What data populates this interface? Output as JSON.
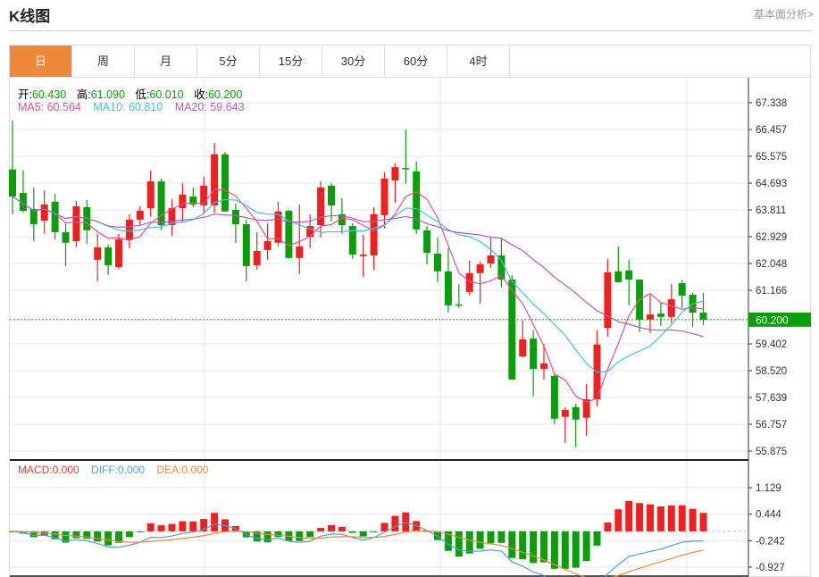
{
  "header": {
    "title": "K线图",
    "link": "基本面分析>"
  },
  "tabs": [
    {
      "label": "日",
      "active": true
    },
    {
      "label": "周"
    },
    {
      "label": "月"
    },
    {
      "label": "5分"
    },
    {
      "label": "15分"
    },
    {
      "label": "30分"
    },
    {
      "label": "60分"
    },
    {
      "label": "4时"
    }
  ],
  "ohlc_info": {
    "open_label": "开:",
    "open": "60.430",
    "high_label": "高:",
    "high": "61.090",
    "low_label": "低:",
    "low": "60.010",
    "close_label": "收:",
    "close": "60.200"
  },
  "ma_info": {
    "ma5": "MA5: 60.564",
    "ma10": "MA10: 60.810",
    "ma20": "MA20: 59.643"
  },
  "macd_info": {
    "macd": "MACD:0.000",
    "diff": "DIFF:0.000",
    "dea": "DEA:0.000"
  },
  "colors": {
    "up": "#ee2020",
    "down": "#0a9e0a",
    "active_tab": "#f0883a",
    "ma5": "#e8508c",
    "ma10": "#3cc4d4",
    "ma20": "#b05cc0",
    "diff": "#4a9ee0",
    "dea": "#f08a30",
    "last_price": "#0a9e0a"
  },
  "chart_data": {
    "type": "candlestick",
    "price_axis": {
      "ticks": [
        "67.338",
        "66.457",
        "65.575",
        "64.693",
        "63.811",
        "62.929",
        "62.048",
        "61.166",
        "60.200",
        "59.402",
        "58.520",
        "57.639",
        "56.757",
        "55.875"
      ],
      "range": [
        55.875,
        67.338
      ],
      "last_price": "60.200"
    },
    "macd_axis": {
      "ticks": [
        "1.129",
        "0.444",
        "-0.242",
        "-0.927"
      ],
      "range": [
        -0.927,
        1.129
      ]
    },
    "candles": [
      [
        65.14,
        66.75,
        63.67,
        64.25
      ],
      [
        64.37,
        65.11,
        63.73,
        63.78
      ],
      [
        63.84,
        64.55,
        62.78,
        63.34
      ],
      [
        63.46,
        64.46,
        63.02,
        63.99
      ],
      [
        64.08,
        64.34,
        62.84,
        63.08
      ],
      [
        63.08,
        63.37,
        61.96,
        62.73
      ],
      [
        62.78,
        64.11,
        62.58,
        63.93
      ],
      [
        63.9,
        64.14,
        62.7,
        63.14
      ],
      [
        62.17,
        63.02,
        61.46,
        62.58
      ],
      [
        62.58,
        62.67,
        61.67,
        61.99
      ],
      [
        61.93,
        63.02,
        61.87,
        62.84
      ],
      [
        62.84,
        63.67,
        62.55,
        63.49
      ],
      [
        63.49,
        63.93,
        63.31,
        63.78
      ],
      [
        63.87,
        65.11,
        63.58,
        64.75
      ],
      [
        64.75,
        64.84,
        63.14,
        63.31
      ],
      [
        63.31,
        64.17,
        62.96,
        63.87
      ],
      [
        63.87,
        64.7,
        63.43,
        64.31
      ],
      [
        64.25,
        64.55,
        63.9,
        63.99
      ],
      [
        63.96,
        64.9,
        63.67,
        64.61
      ],
      [
        63.96,
        66.02,
        63.7,
        65.64
      ],
      [
        65.64,
        65.72,
        63.76,
        63.76
      ],
      [
        63.81,
        64.02,
        62.73,
        63.34
      ],
      [
        63.34,
        63.49,
        61.46,
        61.96
      ],
      [
        61.99,
        63.08,
        61.84,
        62.46
      ],
      [
        62.49,
        63.37,
        62.17,
        62.78
      ],
      [
        62.73,
        64.08,
        62.61,
        63.76
      ],
      [
        63.78,
        63.81,
        62.2,
        62.23
      ],
      [
        62.23,
        63.99,
        61.7,
        62.61
      ],
      [
        62.93,
        63.67,
        62.55,
        63.28
      ],
      [
        63.31,
        64.75,
        62.9,
        64.55
      ],
      [
        64.61,
        64.7,
        63.43,
        63.96
      ],
      [
        63.67,
        64.2,
        63.02,
        63.31
      ],
      [
        63.28,
        63.37,
        62.2,
        62.34
      ],
      [
        62.29,
        62.99,
        61.61,
        62.34
      ],
      [
        62.31,
        63.9,
        61.84,
        63.67
      ],
      [
        63.64,
        65.05,
        63.2,
        64.84
      ],
      [
        64.78,
        65.34,
        64.05,
        65.22
      ],
      [
        65.19,
        66.46,
        64.67,
        65.17
      ],
      [
        65.08,
        65.4,
        63.02,
        63.17
      ],
      [
        63.14,
        63.28,
        62.02,
        62.4
      ],
      [
        62.37,
        62.9,
        61.43,
        61.79
      ],
      [
        61.79,
        62.55,
        60.43,
        60.67
      ],
      [
        60.7,
        61.37,
        60.58,
        60.67
      ],
      [
        61.11,
        62.14,
        60.99,
        61.73
      ],
      [
        61.73,
        62.11,
        60.73,
        62.02
      ],
      [
        62.05,
        62.93,
        61.9,
        62.31
      ],
      [
        62.31,
        62.87,
        61.26,
        61.52
      ],
      [
        61.52,
        61.67,
        58.23,
        58.23
      ],
      [
        58.99,
        60.17,
        58.96,
        59.55
      ],
      [
        59.58,
        59.85,
        57.67,
        58.58
      ],
      [
        58.58,
        59.4,
        58.23,
        58.76
      ],
      [
        58.35,
        58.41,
        56.76,
        56.94
      ],
      [
        57.0,
        57.32,
        56.14,
        57.23
      ],
      [
        57.32,
        57.44,
        56.0,
        56.91
      ],
      [
        56.97,
        58.08,
        56.38,
        57.58
      ],
      [
        57.58,
        59.85,
        57.35,
        59.38
      ],
      [
        59.93,
        62.2,
        59.64,
        61.76
      ],
      [
        61.79,
        62.61,
        61.43,
        61.43
      ],
      [
        61.82,
        62.17,
        60.67,
        61.52
      ],
      [
        61.52,
        61.52,
        59.79,
        60.2
      ],
      [
        60.2,
        61.02,
        59.76,
        60.37
      ],
      [
        60.4,
        60.76,
        59.99,
        60.29
      ],
      [
        60.29,
        61.37,
        60.08,
        60.87
      ],
      [
        61.4,
        61.49,
        60.58,
        60.99
      ],
      [
        61.02,
        61.08,
        59.96,
        60.43
      ],
      [
        60.43,
        61.09,
        60.01,
        60.2
      ]
    ],
    "candle_format": [
      "open",
      "high",
      "low",
      "close"
    ],
    "moving_averages": [
      5,
      10,
      20
    ]
  }
}
